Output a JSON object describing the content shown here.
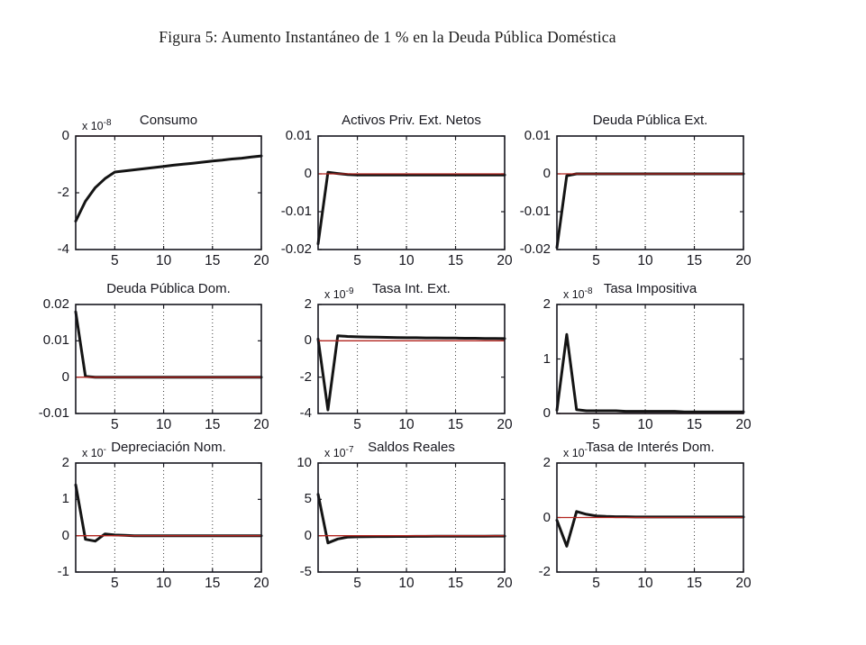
{
  "figure_caption": "Figura 5: Aumento Instantáneo de 1 % en la Deuda Pública Doméstica",
  "colors": {
    "series": "#141414",
    "baseline": "#b2251f",
    "grid": "#3a3a3a",
    "axis": "#17171f",
    "text": "#17171f"
  },
  "chart_data": [
    {
      "type": "line",
      "title": "Consumo",
      "scale_base": "x 10",
      "scale_exp": "-8",
      "xlim": [
        1,
        20
      ],
      "ylim": [
        -4,
        0
      ],
      "xticks": [
        5,
        10,
        15,
        20
      ],
      "yticks": [
        0,
        -2,
        -4
      ],
      "grid": "vertical-dotted",
      "baseline_y": 0,
      "x": [
        1,
        2,
        3,
        4,
        5,
        6,
        7,
        8,
        9,
        10,
        11,
        12,
        13,
        14,
        15,
        16,
        17,
        18,
        19,
        20
      ],
      "y": [
        -3.0,
        -2.3,
        -1.82,
        -1.5,
        -1.27,
        -1.23,
        -1.19,
        -1.15,
        -1.11,
        -1.07,
        -1.03,
        -0.99,
        -0.96,
        -0.92,
        -0.88,
        -0.85,
        -0.81,
        -0.78,
        -0.74,
        -0.7
      ]
    },
    {
      "type": "line",
      "title": "Activos Priv. Ext. Netos",
      "xlim": [
        1,
        20
      ],
      "ylim": [
        -0.02,
        0.01
      ],
      "xticks": [
        5,
        10,
        15,
        20
      ],
      "yticks": [
        0.01,
        0,
        -0.01,
        -0.02
      ],
      "grid": "vertical-dotted",
      "baseline_y": 0,
      "x": [
        1,
        2,
        3,
        4,
        5,
        6,
        7,
        8,
        9,
        10,
        11,
        12,
        13,
        14,
        15,
        16,
        17,
        18,
        19,
        20
      ],
      "y": [
        -0.0185,
        0.0004,
        0.0001,
        -0.0002,
        -0.0003,
        -0.0003,
        -0.0003,
        -0.0003,
        -0.0003,
        -0.0003,
        -0.0003,
        -0.0003,
        -0.0003,
        -0.0003,
        -0.0003,
        -0.0003,
        -0.0003,
        -0.0003,
        -0.0003,
        -0.0003
      ]
    },
    {
      "type": "line",
      "title": "Deuda Pública Ext.",
      "xlim": [
        1,
        20
      ],
      "ylim": [
        -0.02,
        0.01
      ],
      "xticks": [
        5,
        10,
        15,
        20
      ],
      "yticks": [
        0.01,
        0,
        -0.01,
        -0.02
      ],
      "grid": "vertical-dotted",
      "baseline_y": 0,
      "x": [
        1,
        2,
        3,
        4,
        5,
        6,
        7,
        8,
        9,
        10,
        11,
        12,
        13,
        14,
        15,
        16,
        17,
        18,
        19,
        20
      ],
      "y": [
        -0.0195,
        -0.0005,
        0,
        0,
        0,
        0,
        0,
        0,
        0,
        0,
        0,
        0,
        0,
        0,
        0,
        0,
        0,
        0,
        0,
        0
      ]
    },
    {
      "type": "line",
      "title": "Deuda Pública Dom.",
      "xlim": [
        1,
        20
      ],
      "ylim": [
        -0.01,
        0.02
      ],
      "xticks": [
        5,
        10,
        15,
        20
      ],
      "yticks": [
        0.02,
        0.01,
        0,
        -0.01
      ],
      "grid": "vertical-dotted",
      "baseline_y": 0,
      "x": [
        1,
        2,
        3,
        4,
        5,
        6,
        7,
        8,
        9,
        10,
        11,
        12,
        13,
        14,
        15,
        16,
        17,
        18,
        19,
        20
      ],
      "y": [
        0.018,
        0.0002,
        0,
        0,
        0,
        0,
        0,
        0,
        0,
        0,
        0,
        0,
        0,
        0,
        0,
        0,
        0,
        0,
        0,
        0
      ]
    },
    {
      "type": "line",
      "title": "Tasa Int. Ext.",
      "scale_base": "x 10",
      "scale_exp": "-9",
      "xlim": [
        1,
        20
      ],
      "ylim": [
        -4,
        2
      ],
      "xticks": [
        5,
        10,
        15,
        20
      ],
      "yticks": [
        2,
        0,
        -2,
        -4
      ],
      "grid": "vertical-dotted",
      "baseline_y": 0,
      "x": [
        1,
        2,
        3,
        4,
        5,
        6,
        7,
        8,
        9,
        10,
        11,
        12,
        13,
        14,
        15,
        16,
        17,
        18,
        19,
        20
      ],
      "y": [
        0.1,
        -3.8,
        0.28,
        0.24,
        0.22,
        0.21,
        0.2,
        0.19,
        0.18,
        0.17,
        0.17,
        0.16,
        0.16,
        0.15,
        0.15,
        0.14,
        0.14,
        0.13,
        0.13,
        0.12
      ]
    },
    {
      "type": "line",
      "title": "Tasa Impositiva",
      "scale_base": "x 10",
      "scale_exp": "-8",
      "xlim": [
        1,
        20
      ],
      "ylim": [
        0,
        2
      ],
      "xticks": [
        5,
        10,
        15,
        20
      ],
      "yticks": [
        2,
        1,
        0
      ],
      "grid": "vertical-dotted",
      "baseline_y": 0,
      "x": [
        1,
        2,
        3,
        4,
        5,
        6,
        7,
        8,
        9,
        10,
        11,
        12,
        13,
        14,
        15,
        16,
        17,
        18,
        19,
        20
      ],
      "y": [
        0.06,
        1.45,
        0.07,
        0.05,
        0.05,
        0.05,
        0.05,
        0.04,
        0.04,
        0.04,
        0.04,
        0.04,
        0.04,
        0.03,
        0.03,
        0.03,
        0.03,
        0.03,
        0.03,
        0.03
      ]
    },
    {
      "type": "line",
      "title": "Depreciación Nom.",
      "scale_base": "x 10",
      "scale_exp": "-",
      "xlim": [
        1,
        20
      ],
      "ylim": [
        -1,
        2
      ],
      "xticks": [
        5,
        10,
        15,
        20
      ],
      "yticks": [
        2,
        1,
        0,
        -1
      ],
      "grid": "vertical-dotted",
      "baseline_y": 0,
      "x": [
        1,
        2,
        3,
        4,
        5,
        6,
        7,
        8,
        9,
        10,
        11,
        12,
        13,
        14,
        15,
        16,
        17,
        18,
        19,
        20
      ],
      "y": [
        1.4,
        -0.1,
        -0.15,
        0.05,
        0.02,
        0.01,
        0,
        0,
        0,
        0,
        0,
        0,
        0,
        0,
        0,
        0,
        0,
        0,
        0,
        0
      ]
    },
    {
      "type": "line",
      "title": "Saldos Reales",
      "scale_base": "x 10",
      "scale_exp": "-7",
      "xlim": [
        1,
        20
      ],
      "ylim": [
        -5,
        10
      ],
      "xticks": [
        5,
        10,
        15,
        20
      ],
      "yticks": [
        10,
        5,
        0,
        -5
      ],
      "grid": "vertical-dotted",
      "baseline_y": 0,
      "x": [
        1,
        2,
        3,
        4,
        5,
        6,
        7,
        8,
        9,
        10,
        11,
        12,
        13,
        14,
        15,
        16,
        17,
        18,
        19,
        20
      ],
      "y": [
        5.7,
        -1.0,
        -0.45,
        -0.2,
        -0.15,
        -0.13,
        -0.12,
        -0.11,
        -0.1,
        -0.1,
        -0.09,
        -0.09,
        -0.08,
        -0.08,
        -0.07,
        -0.07,
        -0.06,
        -0.06,
        -0.05,
        -0.05
      ]
    },
    {
      "type": "line",
      "title": "Tasa de Interés Dom.",
      "scale_base": "x 10",
      "scale_exp": "-",
      "xlim": [
        1,
        20
      ],
      "ylim": [
        -2,
        2
      ],
      "xticks": [
        5,
        10,
        15,
        20
      ],
      "yticks": [
        2,
        0,
        -2
      ],
      "grid": "vertical-dotted",
      "baseline_y": 0,
      "x": [
        1,
        2,
        3,
        4,
        5,
        6,
        7,
        8,
        9,
        10,
        11,
        12,
        13,
        14,
        15,
        16,
        17,
        18,
        19,
        20
      ],
      "y": [
        -0.1,
        -1.05,
        0.22,
        0.12,
        0.06,
        0.04,
        0.03,
        0.03,
        0.02,
        0.02,
        0.02,
        0.02,
        0.02,
        0.02,
        0.02,
        0.02,
        0.02,
        0.02,
        0.02,
        0.02
      ]
    }
  ]
}
